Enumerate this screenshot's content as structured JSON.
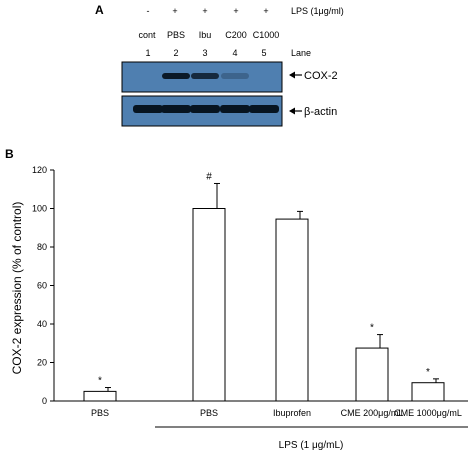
{
  "figure": {
    "panel_a": {
      "letter": "A",
      "treatment_signs": [
        "-",
        "+",
        "+",
        "+",
        "+"
      ],
      "lps_label": "LPS (1μg/ml)",
      "group_labels": [
        "cont",
        "PBS",
        "Ibu",
        "C200",
        "C1000"
      ],
      "lane_numbers": [
        "1",
        "2",
        "3",
        "4",
        "5"
      ],
      "lane_label": "Lane",
      "bands": [
        {
          "name": "COX-2",
          "intensity": [
            0.0,
            0.95,
            0.8,
            0.25,
            0.0
          ]
        },
        {
          "name": "β-actin",
          "intensity": [
            1,
            1,
            1,
            1,
            1
          ]
        }
      ],
      "colors": {
        "blot_bg": "#4f7fb0",
        "band": "#071420"
      }
    },
    "panel_b": {
      "letter": "B",
      "group_label": "LPS (1 μg/mL)"
    }
  },
  "chart_data": {
    "type": "bar",
    "categories": [
      "PBS",
      "PBS",
      "Ibuprofen",
      "CME 200μg/mL",
      "CME 1000μg/mL"
    ],
    "values": [
      5,
      100,
      94.5,
      27.5,
      9.5
    ],
    "errors": [
      2,
      13,
      4,
      7,
      2
    ],
    "annotations": [
      "*",
      "#",
      "",
      "*",
      "*"
    ],
    "xlabel": "",
    "ylabel": "COX-2 expression (% of control)",
    "ylim": [
      0,
      120
    ],
    "yticks": [
      0,
      20,
      40,
      60,
      80,
      100,
      120
    ],
    "grid": false,
    "legend": "none"
  }
}
